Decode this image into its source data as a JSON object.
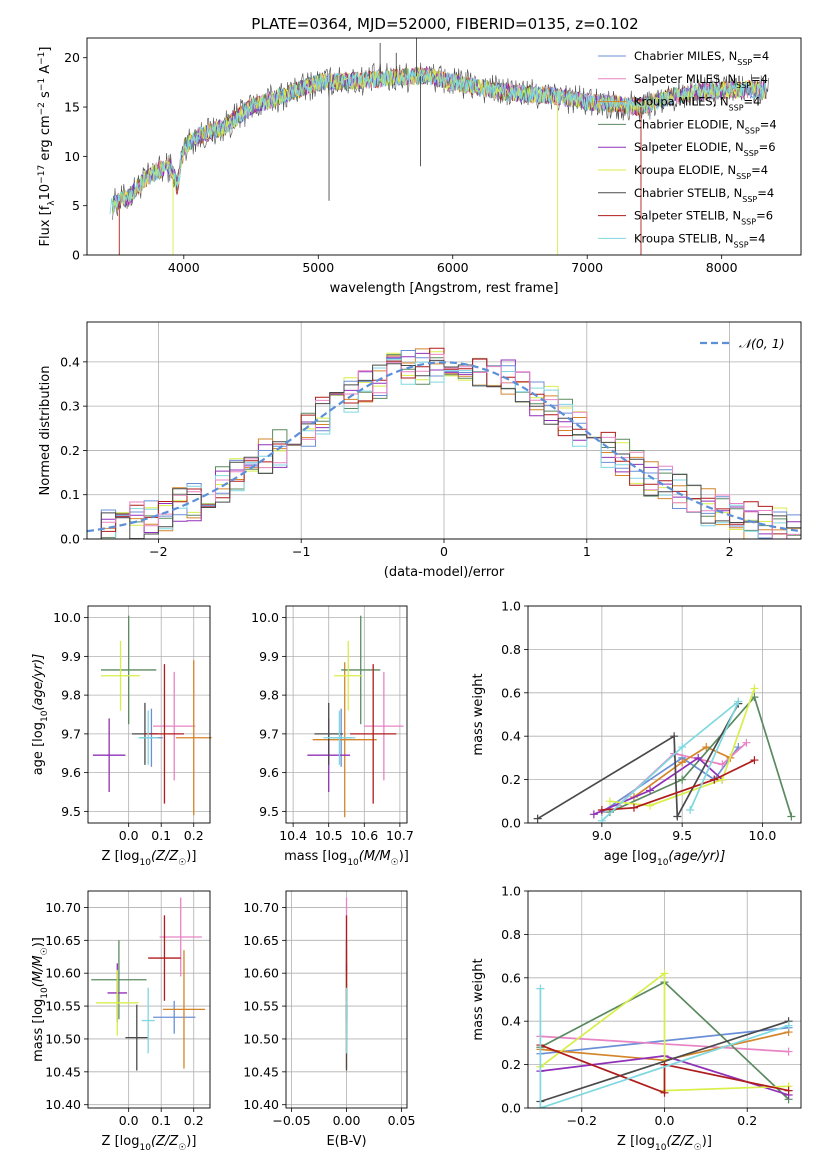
{
  "figure_title": "PLATE=0364, MJD=52000, FIBERID=0135, z=0.102",
  "colors": {
    "chabrier_miles": "#6b8fd6",
    "salpeter_miles": "#e883c4",
    "kroupa_miles": "#d4852a",
    "chabrier_elodie": "#5a8a5f",
    "salpeter_elodie": "#9030b8",
    "kroupa_elodie": "#d8ee4a",
    "chabrier_stelib": "#4a4a4a",
    "salpeter_stelib": "#b01c1c",
    "kroupa_stelib": "#7fd7e0",
    "normal_curve": "#5b8fd8",
    "grid": "#b0b0b0"
  },
  "chart_data": [
    {
      "id": "spectrum",
      "type": "line",
      "xlabel": "wavelength [Angstrom, rest frame]",
      "ylabel_parts": [
        "Flux [f",
        "λ",
        "10",
        "−17",
        " erg cm",
        "−2",
        " s",
        "−1",
        " A",
        "−1",
        "]"
      ],
      "xlim": [
        3280,
        8590
      ],
      "ylim": [
        0,
        22
      ],
      "xticks": [
        4000,
        5000,
        6000,
        7000,
        8000
      ],
      "yticks": [
        0,
        5,
        10,
        15,
        20
      ],
      "grid": false,
      "legend_position": "top-right",
      "legend": [
        {
          "base": "Chabrier MILES, N",
          "sub": "SSP",
          "tail": "=4",
          "key": "chabrier_miles"
        },
        {
          "base": "Salpeter MILES, N",
          "sub": "SSP",
          "tail": "=4",
          "key": "salpeter_miles"
        },
        {
          "base": "Kroupa MILES, N",
          "sub": "SSP",
          "tail": "=4",
          "key": "kroupa_miles"
        },
        {
          "base": "Chabrier ELODIE, N",
          "sub": "SSP",
          "tail": "=4",
          "key": "chabrier_elodie"
        },
        {
          "base": "Salpeter ELODIE, N",
          "sub": "SSP",
          "tail": "=6",
          "key": "salpeter_elodie"
        },
        {
          "base": "Kroupa ELODIE, N",
          "sub": "SSP",
          "tail": "=4",
          "key": "kroupa_elodie"
        },
        {
          "base": "Chabrier STELIB, N",
          "sub": "SSP",
          "tail": "=4",
          "key": "chabrier_stelib"
        },
        {
          "base": "Salpeter STELIB, N",
          "sub": "SSP",
          "tail": "=6",
          "key": "salpeter_stelib"
        },
        {
          "base": "Kroupa STELIB, N",
          "sub": "SSP",
          "tail": "=4",
          "key": "kroupa_stelib"
        }
      ],
      "continuum": [
        [
          3450,
          5.0
        ],
        [
          3600,
          6.0
        ],
        [
          3700,
          7.5
        ],
        [
          3800,
          8.5
        ],
        [
          3900,
          9.0
        ],
        [
          3950,
          7.0
        ],
        [
          4000,
          11.0
        ],
        [
          4100,
          12.0
        ],
        [
          4200,
          12.5
        ],
        [
          4300,
          13.0
        ],
        [
          4400,
          14.0
        ],
        [
          4500,
          15.0
        ],
        [
          4600,
          15.5
        ],
        [
          4700,
          16.0
        ],
        [
          4800,
          16.5
        ],
        [
          4900,
          17.0
        ],
        [
          5000,
          17.5
        ],
        [
          5200,
          17.6
        ],
        [
          5400,
          17.8
        ],
        [
          5600,
          18.0
        ],
        [
          5800,
          18.2
        ],
        [
          6000,
          17.5
        ],
        [
          6200,
          17.0
        ],
        [
          6400,
          16.5
        ],
        [
          6600,
          16.3
        ],
        [
          6800,
          16.0
        ],
        [
          7000,
          15.5
        ],
        [
          7200,
          15.3
        ],
        [
          7400,
          15.0
        ],
        [
          7600,
          16.0
        ],
        [
          7800,
          16.5
        ],
        [
          8000,
          16.7
        ],
        [
          8200,
          16.8
        ],
        [
          8350,
          16.7
        ]
      ],
      "spikes": [
        {
          "x": 3520,
          "y": 0,
          "key": "salpeter_stelib"
        },
        {
          "x": 3920,
          "y": 0,
          "key": "kroupa_elodie"
        },
        {
          "x": 5080,
          "y": 5.5,
          "key": "chabrier_stelib"
        },
        {
          "x": 5460,
          "y": 21.5,
          "key": "chabrier_stelib"
        },
        {
          "x": 5580,
          "y": 20.5,
          "key": "chabrier_stelib"
        },
        {
          "x": 5730,
          "y": 23.0,
          "key": "chabrier_stelib"
        },
        {
          "x": 5760,
          "y": 9.0,
          "key": "chabrier_stelib"
        },
        {
          "x": 6780,
          "y": 0,
          "key": "kroupa_elodie"
        },
        {
          "x": 7400,
          "y": 0,
          "key": "salpeter_stelib"
        }
      ]
    },
    {
      "id": "residual_histogram",
      "type": "line",
      "xlabel": "(data-model)/error",
      "ylabel": "Normed distribution",
      "xlim": [
        -2.5,
        2.5
      ],
      "ylim": [
        0,
        0.49
      ],
      "xticks": [
        -2,
        -1,
        0,
        1,
        2
      ],
      "yticks": [
        0.0,
        0.1,
        0.2,
        0.3,
        0.4
      ],
      "grid": true,
      "legend_position": "top-right",
      "legend": [
        {
          "label": "𝒩(0, 1)",
          "key": "normal_curve",
          "dashed": true
        }
      ],
      "bins": {
        "start": -2.5,
        "width": 0.1,
        "count": 50
      }
    },
    {
      "id": "age_vs_Z",
      "type": "scatter",
      "xlabel_parts": [
        "Z [log",
        "10",
        "(Z/Z",
        "☉",
        ")]"
      ],
      "ylabel_parts": [
        "age  [log",
        "10",
        "(age/yr)]"
      ],
      "xlim": [
        -0.125,
        0.25
      ],
      "ylim": [
        9.47,
        10.03
      ],
      "xticks": [
        0.0,
        0.1,
        0.2
      ],
      "yticks": [
        9.5,
        9.6,
        9.7,
        9.8,
        9.9,
        10.0
      ],
      "grid": true,
      "points": [
        {
          "key": "chabrier_miles",
          "x": 0.07,
          "y": 9.69,
          "xerr": 0.035,
          "yerr": 0.075
        },
        {
          "key": "salpeter_miles",
          "x": 0.14,
          "y": 9.72,
          "xerr": 0.065,
          "yerr": 0.14
        },
        {
          "key": "kroupa_miles",
          "x": 0.2,
          "y": 9.69,
          "xerr": 0.055,
          "yerr": 0.2
        },
        {
          "key": "chabrier_elodie",
          "x": -0.0,
          "y": 9.865,
          "xerr": 0.085,
          "yerr": 0.14
        },
        {
          "key": "salpeter_elodie",
          "x": -0.06,
          "y": 9.645,
          "xerr": 0.05,
          "yerr": 0.095
        },
        {
          "key": "kroupa_elodie",
          "x": -0.025,
          "y": 9.85,
          "xerr": 0.06,
          "yerr": 0.09
        },
        {
          "key": "chabrier_stelib",
          "x": 0.05,
          "y": 9.7,
          "xerr": 0.04,
          "yerr": 0.08
        },
        {
          "key": "salpeter_stelib",
          "x": 0.11,
          "y": 9.7,
          "xerr": 0.06,
          "yerr": 0.18
        },
        {
          "key": "kroupa_stelib",
          "x": 0.06,
          "y": 9.69,
          "xerr": 0.03,
          "yerr": 0.07
        }
      ]
    },
    {
      "id": "age_vs_mass",
      "type": "scatter",
      "xlabel_parts": [
        "mass [log",
        "10",
        "(M/M",
        "☉",
        ")]"
      ],
      "xlim": [
        10.38,
        10.72
      ],
      "ylim": [
        9.47,
        10.03
      ],
      "xticks": [
        10.4,
        10.5,
        10.6,
        10.7
      ],
      "yticks": [
        9.5,
        9.6,
        9.7,
        9.8,
        9.9,
        10.0
      ],
      "grid": true,
      "points": [
        {
          "key": "chabrier_miles",
          "x": 10.535,
          "y": 9.69,
          "xerr": 0.03,
          "yerr": 0.075
        },
        {
          "key": "salpeter_miles",
          "x": 10.655,
          "y": 9.72,
          "xerr": 0.055,
          "yerr": 0.14
        },
        {
          "key": "kroupa_miles",
          "x": 10.545,
          "y": 9.685,
          "xerr": 0.09,
          "yerr": 0.2
        },
        {
          "key": "chabrier_elodie",
          "x": 10.59,
          "y": 9.865,
          "xerr": 0.055,
          "yerr": 0.14
        },
        {
          "key": "salpeter_elodie",
          "x": 10.5,
          "y": 9.645,
          "xerr": 0.06,
          "yerr": 0.095
        },
        {
          "key": "kroupa_elodie",
          "x": 10.555,
          "y": 9.85,
          "xerr": 0.04,
          "yerr": 0.09
        },
        {
          "key": "chabrier_stelib",
          "x": 10.5,
          "y": 9.7,
          "xerr": 0.04,
          "yerr": 0.08
        },
        {
          "key": "salpeter_stelib",
          "x": 10.625,
          "y": 9.7,
          "xerr": 0.065,
          "yerr": 0.18
        },
        {
          "key": "kroupa_stelib",
          "x": 10.53,
          "y": 9.69,
          "xerr": 0.045,
          "yerr": 0.07
        }
      ]
    },
    {
      "id": "mass_weight_vs_age",
      "type": "line",
      "xlabel_parts": [
        "age  [log",
        "10",
        "(age/yr)]"
      ],
      "ylabel": "mass weight",
      "xlim": [
        8.54,
        10.24
      ],
      "ylim": [
        0,
        1.0
      ],
      "xticks": [
        9.0,
        9.5,
        10.0
      ],
      "yticks": [
        0.0,
        0.2,
        0.4,
        0.6,
        0.8,
        1.0
      ],
      "grid": true,
      "series": [
        {
          "key": "chabrier_miles",
          "x": [
            9.0,
            9.5,
            9.7,
            9.85
          ],
          "y": [
            0.05,
            0.3,
            0.2,
            0.35
          ]
        },
        {
          "key": "salpeter_miles",
          "x": [
            9.1,
            9.45,
            9.75,
            9.9
          ],
          "y": [
            0.08,
            0.32,
            0.27,
            0.37
          ]
        },
        {
          "key": "kroupa_miles",
          "x": [
            9.2,
            9.5,
            9.65,
            9.8
          ],
          "y": [
            0.12,
            0.28,
            0.35,
            0.3
          ]
        },
        {
          "key": "chabrier_elodie",
          "x": [
            9.05,
            9.5,
            9.95,
            10.18
          ],
          "y": [
            0.05,
            0.2,
            0.58,
            0.03
          ]
        },
        {
          "key": "salpeter_elodie",
          "x": [
            8.95,
            9.3,
            9.6,
            9.75
          ],
          "y": [
            0.04,
            0.15,
            0.3,
            0.2
          ]
        },
        {
          "key": "kroupa_elodie",
          "x": [
            9.05,
            9.3,
            9.75,
            9.95
          ],
          "y": [
            0.1,
            0.08,
            0.2,
            0.62
          ]
        },
        {
          "key": "chabrier_stelib",
          "x": [
            8.6,
            9.45,
            9.47,
            9.85
          ],
          "y": [
            0.02,
            0.4,
            0.03,
            0.55
          ]
        },
        {
          "key": "salpeter_stelib",
          "x": [
            9.0,
            9.2,
            9.7,
            9.95
          ],
          "y": [
            0.06,
            0.07,
            0.2,
            0.29
          ]
        },
        {
          "key": "kroupa_stelib",
          "x": [
            9.0,
            9.5,
            9.85,
            9.55
          ],
          "y": [
            0.01,
            0.35,
            0.56,
            0.06
          ]
        }
      ]
    },
    {
      "id": "mass_vs_Z",
      "type": "scatter",
      "xlabel_parts": [
        "Z [log",
        "10",
        "(Z/Z",
        "☉",
        ")]"
      ],
      "ylabel_parts": [
        "mass [log",
        "10",
        "(M/M",
        "☉",
        ")]"
      ],
      "xlim": [
        -0.125,
        0.25
      ],
      "ylim": [
        10.395,
        10.725
      ],
      "xticks": [
        0.0,
        0.1,
        0.2
      ],
      "yticks": [
        10.4,
        10.45,
        10.5,
        10.55,
        10.6,
        10.65,
        10.7
      ],
      "grid": true,
      "points": [
        {
          "key": "chabrier_miles",
          "x": 0.14,
          "y": 10.533,
          "xerr": 0.065,
          "yerr": 0.025
        },
        {
          "key": "salpeter_miles",
          "x": 0.16,
          "y": 10.655,
          "xerr": 0.065,
          "yerr": 0.06
        },
        {
          "key": "kroupa_miles",
          "x": 0.17,
          "y": 10.545,
          "xerr": 0.065,
          "yerr": 0.09
        },
        {
          "key": "chabrier_elodie",
          "x": -0.03,
          "y": 10.59,
          "xerr": 0.085,
          "yerr": 0.06
        },
        {
          "key": "salpeter_elodie",
          "x": -0.035,
          "y": 10.57,
          "xerr": 0.03,
          "yerr": 0.045
        },
        {
          "key": "kroupa_elodie",
          "x": -0.035,
          "y": 10.555,
          "xerr": 0.065,
          "yerr": 0.05
        },
        {
          "key": "chabrier_stelib",
          "x": 0.025,
          "y": 10.502,
          "xerr": 0.035,
          "yerr": 0.05
        },
        {
          "key": "salpeter_stelib",
          "x": 0.11,
          "y": 10.623,
          "xerr": 0.05,
          "yerr": 0.065
        },
        {
          "key": "kroupa_stelib",
          "x": 0.06,
          "y": 10.528,
          "xerr": 0.02,
          "yerr": 0.05
        }
      ]
    },
    {
      "id": "mass_vs_ebv",
      "type": "scatter",
      "xlabel": "E(B-V)",
      "xlim": [
        -0.055,
        0.055
      ],
      "ylim": [
        10.395,
        10.725
      ],
      "xticks": [
        -0.05,
        0.0,
        0.05
      ],
      "yticks": [
        10.4,
        10.45,
        10.5,
        10.55,
        10.6,
        10.65,
        10.7
      ],
      "grid": true,
      "points": [
        {
          "key": "chabrier_miles",
          "x": 0.0,
          "y": 10.533,
          "xerr": 0,
          "yerr": 0.025
        },
        {
          "key": "salpeter_miles",
          "x": 0.0,
          "y": 10.655,
          "xerr": 0,
          "yerr": 0.06
        },
        {
          "key": "kroupa_miles",
          "x": 0.0,
          "y": 10.545,
          "xerr": 0,
          "yerr": 0.09
        },
        {
          "key": "chabrier_elodie",
          "x": 0.0,
          "y": 10.59,
          "xerr": 0,
          "yerr": 0.06
        },
        {
          "key": "salpeter_elodie",
          "x": 0.0,
          "y": 10.57,
          "xerr": 0,
          "yerr": 0.045
        },
        {
          "key": "kroupa_elodie",
          "x": 0.0,
          "y": 10.555,
          "xerr": 0,
          "yerr": 0.05
        },
        {
          "key": "chabrier_stelib",
          "x": 0.0,
          "y": 10.502,
          "xerr": 0,
          "yerr": 0.05
        },
        {
          "key": "salpeter_stelib",
          "x": 0.0,
          "y": 10.623,
          "xerr": 0,
          "yerr": 0.065
        },
        {
          "key": "kroupa_stelib",
          "x": 0.0,
          "y": 10.528,
          "xerr": 0,
          "yerr": 0.05
        }
      ]
    },
    {
      "id": "mass_weight_vs_Z",
      "type": "line",
      "xlabel_parts": [
        "Z [log",
        "10",
        "(Z/Z",
        "☉",
        ")]"
      ],
      "ylabel": "mass weight",
      "xlim": [
        -0.33,
        0.33
      ],
      "ylim": [
        0,
        1.0
      ],
      "xticks": [
        -0.2,
        0.0,
        0.2
      ],
      "yticks": [
        0.0,
        0.2,
        0.4,
        0.6,
        0.8,
        1.0
      ],
      "grid": true,
      "series": [
        {
          "key": "chabrier_miles",
          "x": [
            -0.3,
            0.3
          ],
          "y": [
            0.25,
            0.37
          ]
        },
        {
          "key": "salpeter_miles",
          "x": [
            -0.3,
            0.3
          ],
          "y": [
            0.33,
            0.26
          ]
        },
        {
          "key": "kroupa_miles",
          "x": [
            -0.3,
            0.0,
            0.3
          ],
          "y": [
            0.27,
            0.22,
            0.35
          ]
        },
        {
          "key": "chabrier_elodie",
          "x": [
            -0.3,
            0.0,
            0.3
          ],
          "y": [
            0.28,
            0.58,
            0.04
          ]
        },
        {
          "key": "salpeter_elodie",
          "x": [
            -0.3,
            0.0,
            0.3
          ],
          "y": [
            0.17,
            0.24,
            0.06
          ]
        },
        {
          "key": "kroupa_elodie",
          "x": [
            -0.3,
            0.0,
            0.0,
            0.3
          ],
          "y": [
            0.19,
            0.62,
            0.08,
            0.1
          ]
        },
        {
          "key": "chabrier_stelib",
          "x": [
            -0.3,
            0.3
          ],
          "y": [
            0.03,
            0.4
          ]
        },
        {
          "key": "salpeter_stelib",
          "x": [
            -0.3,
            0.0,
            0.0,
            0.3
          ],
          "y": [
            0.29,
            0.07,
            0.2,
            0.08
          ]
        },
        {
          "key": "kroupa_stelib",
          "x": [
            -0.3,
            -0.3,
            0.3
          ],
          "y": [
            0.55,
            0.0,
            0.38
          ]
        }
      ]
    }
  ]
}
